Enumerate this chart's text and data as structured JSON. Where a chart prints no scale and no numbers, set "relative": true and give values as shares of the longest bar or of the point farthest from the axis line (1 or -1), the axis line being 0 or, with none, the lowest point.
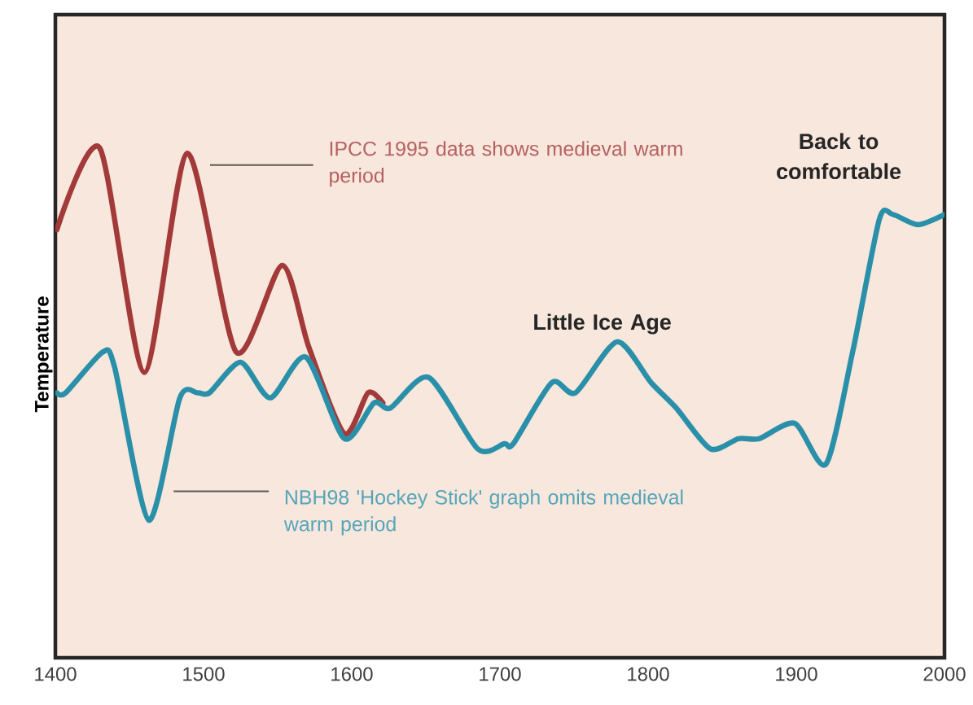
{
  "chart_data": {
    "type": "line",
    "relative": true,
    "ylabel": "Temperature",
    "xlim": [
      1400,
      2000
    ],
    "xticks": [
      1400,
      1500,
      1600,
      1700,
      1800,
      1900,
      2000
    ],
    "series": [
      {
        "name": "IPCC 1995 data shows medieval warm period",
        "color": "#a33a3a",
        "x": [
          1401,
          1430,
          1460,
          1489,
          1522,
          1553,
          1571,
          1595,
          1611,
          1621
        ],
        "values": [
          0.84,
          1.0,
          0.56,
          0.99,
          0.6,
          0.77,
          0.61,
          0.44,
          0.52,
          0.5
        ]
      },
      {
        "name": "NBH98 'Hockey Stick' graph omits medieval warm period",
        "color": "#2a8fa8",
        "x": [
          1401,
          1407,
          1432,
          1440,
          1463,
          1484,
          1496,
          1504,
          1525,
          1545,
          1569,
          1595,
          1615,
          1626,
          1652,
          1685,
          1703,
          1709,
          1735,
          1751,
          1779,
          1802,
          1819,
          1842,
          1861,
          1875,
          1899,
          1920,
          1938,
          1956,
          1965,
          1982,
          2000
        ],
        "values": [
          0.52,
          0.52,
          0.6,
          0.57,
          0.27,
          0.51,
          0.52,
          0.52,
          0.58,
          0.51,
          0.59,
          0.43,
          0.5,
          0.49,
          0.55,
          0.41,
          0.42,
          0.42,
          0.54,
          0.52,
          0.62,
          0.54,
          0.49,
          0.41,
          0.43,
          0.43,
          0.46,
          0.38,
          0.6,
          0.86,
          0.87,
          0.85,
          0.87
        ]
      }
    ],
    "annotations": [
      "Little Ice Age",
      "Back to comfortable"
    ]
  }
}
